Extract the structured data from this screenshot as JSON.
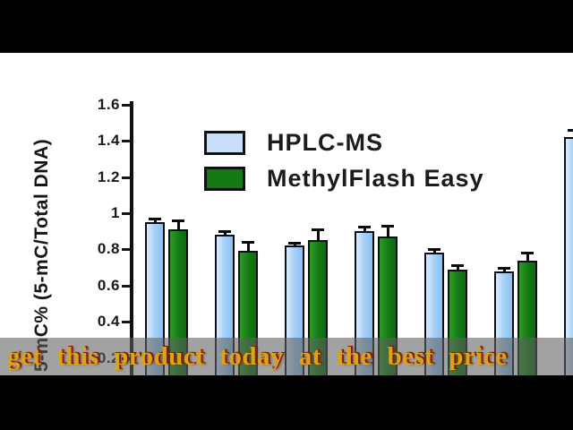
{
  "frame": {
    "caption": "get this product today at the best price"
  },
  "chart_data": {
    "type": "bar",
    "title": "",
    "xlabel": "",
    "ylabel": "5-mC% (5-mC/Total DNA)",
    "y_tick_labels": [
      "1.6",
      "1.4",
      "1.2",
      "1",
      "0.8",
      "0.6",
      "0.4",
      "0.2"
    ],
    "y_tick_values": [
      1.6,
      1.4,
      1.2,
      1.0,
      0.8,
      0.6,
      0.4,
      0.2
    ],
    "ylim_visible": [
      0.2,
      1.6
    ],
    "grid": false,
    "legend_position": "top-left-inside",
    "n_groups": 7,
    "categories": [
      "",
      "",
      "",
      "",
      "",
      "",
      ""
    ],
    "x_axis_labels_visible": false,
    "series": [
      {
        "name": "HPLC-MS",
        "swatch_color": "#c9def8",
        "bar_color": "#a9d2f7",
        "values": [
          0.95,
          0.88,
          0.82,
          0.9,
          0.78,
          0.68,
          1.42
        ],
        "errors": [
          0.02,
          0.02,
          0.015,
          0.025,
          0.02,
          0.02,
          0.04
        ]
      },
      {
        "name": "MethylFlash Easy",
        "swatch_color": "#157a15",
        "bar_color": "#157a15",
        "values": [
          0.91,
          0.79,
          0.85,
          0.87,
          0.69,
          0.74,
          null
        ],
        "errors": [
          0.05,
          0.05,
          0.06,
          0.06,
          0.025,
          0.04,
          null
        ]
      }
    ],
    "colors": {
      "axis": "#101010",
      "tick_label": "#1a1a1a",
      "caption_text": "#d8a513",
      "caption_shadow": "#8a1a08",
      "caption_band": "rgba(95,95,95,0.58)",
      "letterbox": "#000000",
      "plot_background": "#ffffff"
    }
  }
}
